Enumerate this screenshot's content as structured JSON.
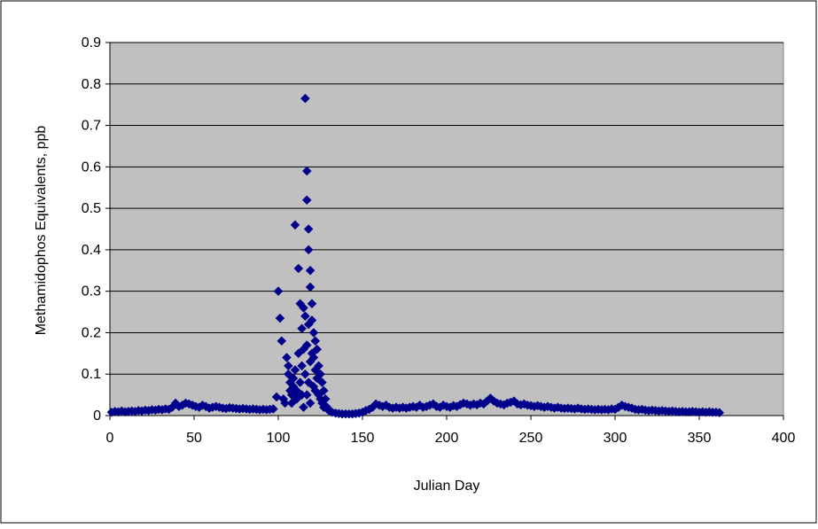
{
  "chart_data": {
    "type": "scatter",
    "title": "",
    "xlabel": "Julian Day",
    "ylabel": "Methamidophos Equivalents, ppb",
    "xlim": [
      0,
      400
    ],
    "ylim": [
      0,
      0.9
    ],
    "x_ticks": [
      "0",
      "50",
      "100",
      "150",
      "200",
      "250",
      "300",
      "350",
      "400"
    ],
    "y_ticks": [
      "0",
      "0.1",
      "0.2",
      "0.3",
      "0.4",
      "0.5",
      "0.6",
      "0.7",
      "0.8",
      "0.9"
    ],
    "grid": "horizontal",
    "legend": "none",
    "colors": {
      "marker": "#00008B",
      "plot_background": "#C0C0C0",
      "gridline": "#000000"
    },
    "series": [
      {
        "values": [
          [
            1,
            0.008
          ],
          [
            3,
            0.01
          ],
          [
            5,
            0.009
          ],
          [
            7,
            0.011
          ],
          [
            9,
            0.009
          ],
          [
            11,
            0.01
          ],
          [
            13,
            0.011
          ],
          [
            15,
            0.01
          ],
          [
            17,
            0.012
          ],
          [
            19,
            0.011
          ],
          [
            21,
            0.013
          ],
          [
            23,
            0.012
          ],
          [
            25,
            0.014
          ],
          [
            27,
            0.013
          ],
          [
            29,
            0.015
          ],
          [
            31,
            0.014
          ],
          [
            33,
            0.016
          ],
          [
            35,
            0.015
          ],
          [
            37,
            0.02
          ],
          [
            39,
            0.03
          ],
          [
            41,
            0.022
          ],
          [
            43,
            0.025
          ],
          [
            45,
            0.03
          ],
          [
            47,
            0.028
          ],
          [
            49,
            0.025
          ],
          [
            51,
            0.022
          ],
          [
            53,
            0.02
          ],
          [
            55,
            0.025
          ],
          [
            57,
            0.022
          ],
          [
            59,
            0.018
          ],
          [
            61,
            0.02
          ],
          [
            63,
            0.022
          ],
          [
            65,
            0.02
          ],
          [
            67,
            0.018
          ],
          [
            69,
            0.017
          ],
          [
            71,
            0.019
          ],
          [
            73,
            0.018
          ],
          [
            75,
            0.017
          ],
          [
            77,
            0.016
          ],
          [
            79,
            0.017
          ],
          [
            81,
            0.016
          ],
          [
            83,
            0.015
          ],
          [
            85,
            0.016
          ],
          [
            87,
            0.015
          ],
          [
            89,
            0.014
          ],
          [
            91,
            0.015
          ],
          [
            93,
            0.014
          ],
          [
            95,
            0.015
          ],
          [
            97,
            0.016
          ],
          [
            99,
            0.045
          ],
          [
            100,
            0.3
          ],
          [
            101,
            0.235
          ],
          [
            102,
            0.18
          ],
          [
            103,
            0.04
          ],
          [
            104,
            0.03
          ],
          [
            105,
            0.14
          ],
          [
            106,
            0.1
          ],
          [
            106,
            0.12
          ],
          [
            107,
            0.08
          ],
          [
            107,
            0.06
          ],
          [
            108,
            0.05
          ],
          [
            108,
            0.03
          ],
          [
            109,
            0.09
          ],
          [
            109,
            0.07
          ],
          [
            110,
            0.46
          ],
          [
            110,
            0.11
          ],
          [
            111,
            0.06
          ],
          [
            111,
            0.04
          ],
          [
            112,
            0.355
          ],
          [
            112,
            0.15
          ],
          [
            113,
            0.27
          ],
          [
            113,
            0.08
          ],
          [
            114,
            0.21
          ],
          [
            114,
            0.12
          ],
          [
            114,
            0.05
          ],
          [
            115,
            0.26
          ],
          [
            115,
            0.16
          ],
          [
            115,
            0.02
          ],
          [
            116,
            0.765
          ],
          [
            116,
            0.24
          ],
          [
            116,
            0.1
          ],
          [
            117,
            0.59
          ],
          [
            117,
            0.52
          ],
          [
            117,
            0.17
          ],
          [
            117,
            0.05
          ],
          [
            118,
            0.45
          ],
          [
            118,
            0.4
          ],
          [
            118,
            0.22
          ],
          [
            118,
            0.08
          ],
          [
            119,
            0.35
          ],
          [
            119,
            0.31
          ],
          [
            119,
            0.13
          ],
          [
            119,
            0.03
          ],
          [
            120,
            0.27
          ],
          [
            120,
            0.23
          ],
          [
            120,
            0.15
          ],
          [
            121,
            0.2
          ],
          [
            121,
            0.14
          ],
          [
            121,
            0.07
          ],
          [
            122,
            0.18
          ],
          [
            122,
            0.11
          ],
          [
            122,
            0.06
          ],
          [
            123,
            0.16
          ],
          [
            123,
            0.09
          ],
          [
            124,
            0.12
          ],
          [
            124,
            0.05
          ],
          [
            125,
            0.1
          ],
          [
            125,
            0.04
          ],
          [
            126,
            0.08
          ],
          [
            126,
            0.03
          ],
          [
            127,
            0.06
          ],
          [
            127,
            0.02
          ],
          [
            128,
            0.04
          ],
          [
            129,
            0.02
          ],
          [
            130,
            0.012
          ],
          [
            132,
            0.008
          ],
          [
            134,
            0.006
          ],
          [
            136,
            0.005
          ],
          [
            138,
            0.004
          ],
          [
            140,
            0.004
          ],
          [
            142,
            0.004
          ],
          [
            144,
            0.004
          ],
          [
            146,
            0.005
          ],
          [
            148,
            0.006
          ],
          [
            150,
            0.008
          ],
          [
            152,
            0.012
          ],
          [
            154,
            0.015
          ],
          [
            156,
            0.02
          ],
          [
            158,
            0.028
          ],
          [
            160,
            0.025
          ],
          [
            162,
            0.022
          ],
          [
            164,
            0.025
          ],
          [
            166,
            0.02
          ],
          [
            168,
            0.018
          ],
          [
            170,
            0.02
          ],
          [
            172,
            0.018
          ],
          [
            174,
            0.02
          ],
          [
            176,
            0.018
          ],
          [
            178,
            0.02
          ],
          [
            180,
            0.022
          ],
          [
            182,
            0.02
          ],
          [
            184,
            0.025
          ],
          [
            186,
            0.02
          ],
          [
            188,
            0.022
          ],
          [
            190,
            0.025
          ],
          [
            192,
            0.028
          ],
          [
            194,
            0.022
          ],
          [
            196,
            0.02
          ],
          [
            198,
            0.025
          ],
          [
            200,
            0.022
          ],
          [
            202,
            0.02
          ],
          [
            204,
            0.024
          ],
          [
            206,
            0.022
          ],
          [
            208,
            0.026
          ],
          [
            210,
            0.03
          ],
          [
            212,
            0.028
          ],
          [
            214,
            0.025
          ],
          [
            216,
            0.028
          ],
          [
            218,
            0.026
          ],
          [
            220,
            0.03
          ],
          [
            222,
            0.028
          ],
          [
            224,
            0.035
          ],
          [
            226,
            0.042
          ],
          [
            228,
            0.035
          ],
          [
            230,
            0.03
          ],
          [
            232,
            0.028
          ],
          [
            234,
            0.026
          ],
          [
            236,
            0.03
          ],
          [
            238,
            0.032
          ],
          [
            240,
            0.035
          ],
          [
            242,
            0.028
          ],
          [
            244,
            0.026
          ],
          [
            246,
            0.028
          ],
          [
            248,
            0.025
          ],
          [
            250,
            0.024
          ],
          [
            252,
            0.022
          ],
          [
            254,
            0.024
          ],
          [
            256,
            0.022
          ],
          [
            258,
            0.02
          ],
          [
            260,
            0.022
          ],
          [
            262,
            0.02
          ],
          [
            264,
            0.018
          ],
          [
            266,
            0.02
          ],
          [
            268,
            0.018
          ],
          [
            270,
            0.017
          ],
          [
            272,
            0.018
          ],
          [
            274,
            0.017
          ],
          [
            276,
            0.016
          ],
          [
            278,
            0.018
          ],
          [
            280,
            0.016
          ],
          [
            282,
            0.015
          ],
          [
            284,
            0.016
          ],
          [
            286,
            0.015
          ],
          [
            288,
            0.014
          ],
          [
            290,
            0.015
          ],
          [
            292,
            0.014
          ],
          [
            294,
            0.015
          ],
          [
            296,
            0.014
          ],
          [
            298,
            0.016
          ],
          [
            300,
            0.015
          ],
          [
            302,
            0.02
          ],
          [
            304,
            0.025
          ],
          [
            306,
            0.022
          ],
          [
            308,
            0.02
          ],
          [
            310,
            0.018
          ],
          [
            312,
            0.015
          ],
          [
            314,
            0.014
          ],
          [
            316,
            0.015
          ],
          [
            318,
            0.013
          ],
          [
            320,
            0.012
          ],
          [
            322,
            0.013
          ],
          [
            324,
            0.012
          ],
          [
            326,
            0.011
          ],
          [
            328,
            0.012
          ],
          [
            330,
            0.011
          ],
          [
            332,
            0.01
          ],
          [
            334,
            0.011
          ],
          [
            336,
            0.01
          ],
          [
            338,
            0.009
          ],
          [
            340,
            0.01
          ],
          [
            342,
            0.009
          ],
          [
            344,
            0.009
          ],
          [
            346,
            0.01
          ],
          [
            348,
            0.009
          ],
          [
            350,
            0.008
          ],
          [
            352,
            0.009
          ],
          [
            354,
            0.008
          ],
          [
            356,
            0.009
          ],
          [
            358,
            0.008
          ],
          [
            360,
            0.008
          ],
          [
            362,
            0.007
          ]
        ]
      }
    ]
  }
}
